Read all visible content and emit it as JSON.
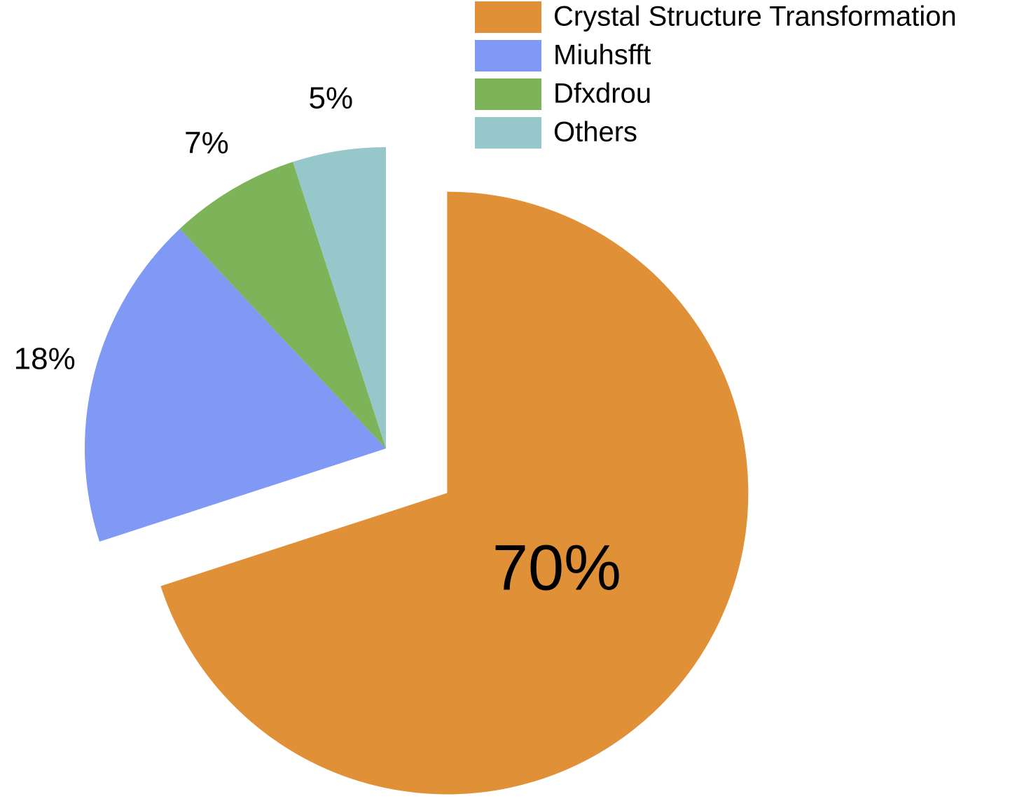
{
  "chart_data": {
    "type": "pie",
    "categories": [
      "Crystal Structure Transformation",
      "Miuhsfft",
      "Dfxdrou",
      "Others"
    ],
    "values": [
      70,
      18,
      7,
      5
    ],
    "value_labels": [
      "70%",
      "18%",
      "7%",
      "5%"
    ],
    "colors": [
      "#e09138",
      "#7f99f4",
      "#7db45a",
      "#96c8cb"
    ],
    "legend": "upper right"
  }
}
